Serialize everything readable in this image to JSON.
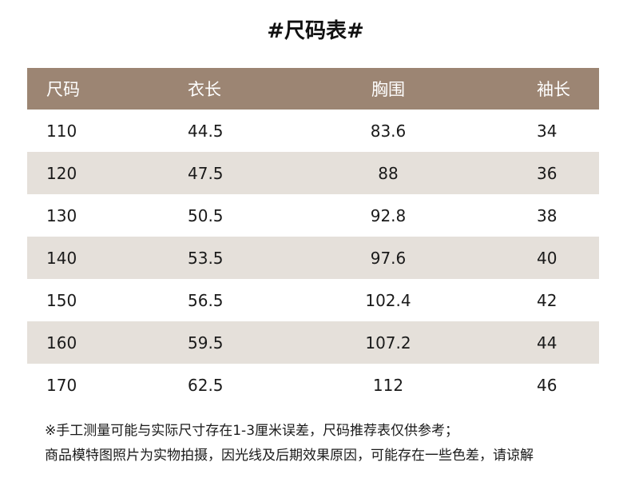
{
  "title": "#尺码表#",
  "headers": [
    "尺码",
    "衣长",
    "胸围",
    "袖长"
  ],
  "rows": [
    [
      "110",
      "44.5",
      "83.6",
      "34"
    ],
    [
      "120",
      "47.5",
      "88",
      "36"
    ],
    [
      "130",
      "50.5",
      "92.8",
      "38"
    ],
    [
      "140",
      "53.5",
      "97.6",
      "40"
    ],
    [
      "150",
      "56.5",
      "102.4",
      "42"
    ],
    [
      "160",
      "59.5",
      "107.2",
      "44"
    ],
    [
      "170",
      "62.5",
      "112",
      "46"
    ]
  ],
  "notes": [
    "※手工测量可能与实际尺寸存在1-3厘米误差，尺码推荐表仅供参考；",
    "商品模特图照片为实物拍摄，因光线及后期效果原因，可能存在一些色差，请谅解"
  ],
  "colors": {
    "header_bg": "#9c8573",
    "alt_row_bg": "#e5e0da"
  }
}
